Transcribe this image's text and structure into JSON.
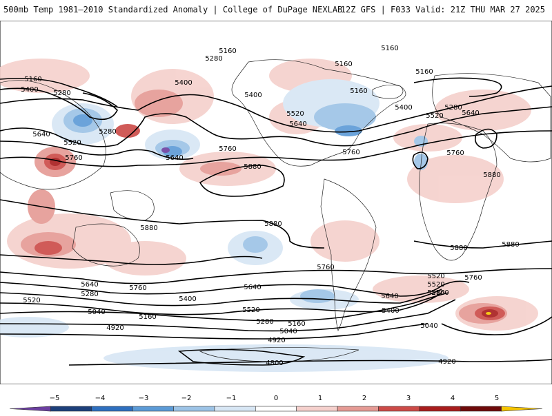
{
  "header": {
    "title_left": "500mb Temp 1981–2010 Standardized Anomaly | College of DuPage NEXLAB",
    "title_right": "12Z GFS | F033 Valid: 21Z THU MAR 27 2025"
  },
  "legend": {
    "ticks": [
      "−5",
      "−4",
      "−3",
      "−2",
      "−1",
      "0",
      "1",
      "2",
      "3",
      "4",
      "5"
    ],
    "colors": [
      "#6b3fa0",
      "#1c3f7a",
      "#2e6fbf",
      "#5b9ad6",
      "#9cc3e6",
      "#d7e6f4",
      "#ffffff",
      "#f5d0cc",
      "#e59a94",
      "#cc4a47",
      "#a81c1c",
      "#6e0a0a",
      "#f5c400"
    ]
  },
  "contours": {
    "labels": [
      "5160",
      "5160",
      "5280",
      "5160",
      "5400",
      "5160",
      "5280",
      "5160",
      "5400",
      "5160",
      "5280",
      "5400",
      "5520",
      "5640",
      "5400",
      "5640",
      "5520",
      "5760",
      "5280",
      "5520",
      "5640",
      "5760",
      "5880",
      "5760",
      "5640",
      "5760",
      "5880",
      "5880",
      "5880",
      "5880",
      "5880",
      "5760",
      "5760",
      "5640",
      "5760",
      "5640",
      "5520",
      "5280",
      "5400",
      "5040",
      "5160",
      "5520",
      "5280",
      "5160",
      "5040",
      "4920",
      "4920",
      "4800",
      "5640",
      "5520",
      "5400",
      "5520",
      "5280",
      "5160",
      "5040",
      "4920"
    ]
  }
}
